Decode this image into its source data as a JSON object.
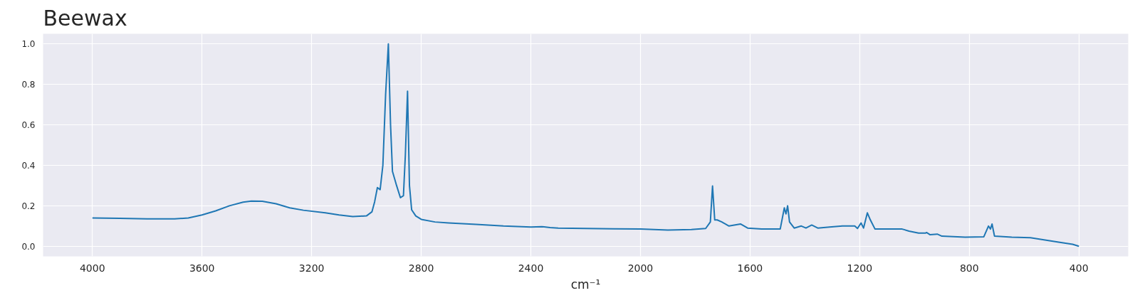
{
  "chart_data": {
    "type": "line",
    "title": "Beewax",
    "xlabel": "cm⁻¹",
    "x": [
      4000,
      3900,
      3800,
      3700,
      3650,
      3600,
      3550,
      3500,
      3450,
      3420,
      3380,
      3330,
      3280,
      3230,
      3150,
      3100,
      3050,
      3000,
      2980,
      2970,
      2960,
      2950,
      2940,
      2930,
      2920,
      2912,
      2905,
      2890,
      2876,
      2865,
      2858,
      2850,
      2843,
      2835,
      2820,
      2800,
      2750,
      2700,
      2600,
      2500,
      2400,
      2360,
      2330,
      2300,
      2200,
      2100,
      2000,
      1900,
      1814,
      1762,
      1745,
      1737,
      1729,
      1720,
      1703,
      1677,
      1635,
      1609,
      1558,
      1490,
      1475,
      1469,
      1463,
      1456,
      1439,
      1413,
      1396,
      1375,
      1353,
      1310,
      1263,
      1242,
      1218,
      1208,
      1195,
      1186,
      1172,
      1161,
      1144,
      1114,
      1071,
      1045,
      1020,
      985,
      960,
      956,
      943,
      917,
      900,
      815,
      747,
      730,
      723,
      717,
      708,
      645,
      577,
      474,
      423,
      400
    ],
    "series": [
      {
        "color": "#1f77b4",
        "values": [
          0.14,
          0.138,
          0.135,
          0.135,
          0.14,
          0.155,
          0.175,
          0.2,
          0.218,
          0.223,
          0.222,
          0.21,
          0.19,
          0.178,
          0.165,
          0.155,
          0.147,
          0.15,
          0.17,
          0.22,
          0.29,
          0.28,
          0.4,
          0.75,
          1.0,
          0.6,
          0.37,
          0.3,
          0.24,
          0.25,
          0.45,
          0.766,
          0.3,
          0.18,
          0.15,
          0.133,
          0.12,
          0.115,
          0.108,
          0.1,
          0.095,
          0.097,
          0.092,
          0.09,
          0.088,
          0.086,
          0.085,
          0.08,
          0.083,
          0.088,
          0.12,
          0.298,
          0.13,
          0.13,
          0.12,
          0.1,
          0.11,
          0.09,
          0.085,
          0.085,
          0.19,
          0.16,
          0.2,
          0.12,
          0.09,
          0.1,
          0.09,
          0.105,
          0.09,
          0.095,
          0.1,
          0.1,
          0.1,
          0.088,
          0.115,
          0.09,
          0.165,
          0.13,
          0.085,
          0.085,
          0.085,
          0.085,
          0.075,
          0.065,
          0.065,
          0.068,
          0.057,
          0.06,
          0.05,
          0.045,
          0.047,
          0.1,
          0.085,
          0.11,
          0.05,
          0.045,
          0.042,
          0.02,
          0.01,
          0.0
        ]
      }
    ],
    "xlim": [
      4180,
      220
    ],
    "ylim": [
      -0.05,
      1.05
    ],
    "xticks": [
      4000,
      3600,
      3200,
      2800,
      2400,
      2000,
      1600,
      1200,
      800,
      400
    ],
    "yticks": [
      {
        "value": 0,
        "label": "0.0"
      },
      {
        "value": 0.2,
        "label": "0.2"
      },
      {
        "value": 0.4,
        "label": "0.4"
      },
      {
        "value": 0.6,
        "label": "0.6"
      },
      {
        "value": 0.8,
        "label": "0.8"
      },
      {
        "value": 1,
        "label": "1.0"
      }
    ],
    "grid": true,
    "line_style": "solid"
  }
}
